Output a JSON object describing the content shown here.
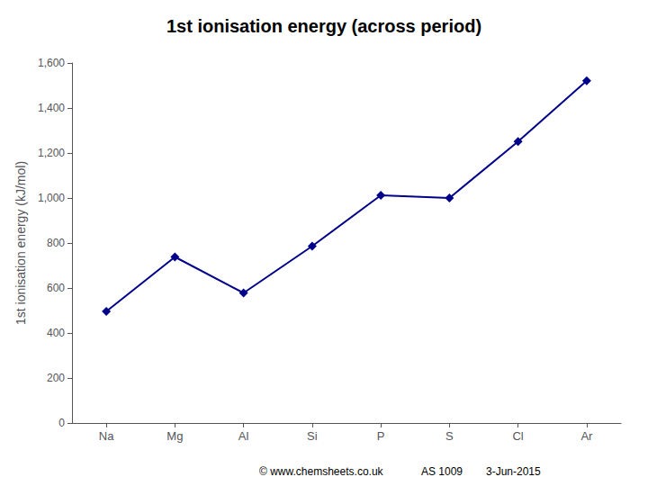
{
  "chart_data": {
    "type": "line",
    "title": "1st ionisation energy (across period)",
    "ylabel": "1st ionisation energy (kJ/mol)",
    "categories": [
      "Na",
      "Mg",
      "Al",
      "Si",
      "P",
      "S",
      "Cl",
      "Ar"
    ],
    "values": [
      496,
      738,
      578,
      786,
      1012,
      1000,
      1251,
      1521
    ],
    "color": "#00008B",
    "marker": "diamond",
    "ylim": [
      0,
      1600
    ],
    "yticks": [
      0,
      200,
      400,
      600,
      800,
      1000,
      1200,
      1400,
      1600
    ],
    "grid": false,
    "annotations": [
      "© www.chemsheets.co.uk",
      "AS 1009",
      "3-Jun-2015"
    ]
  }
}
